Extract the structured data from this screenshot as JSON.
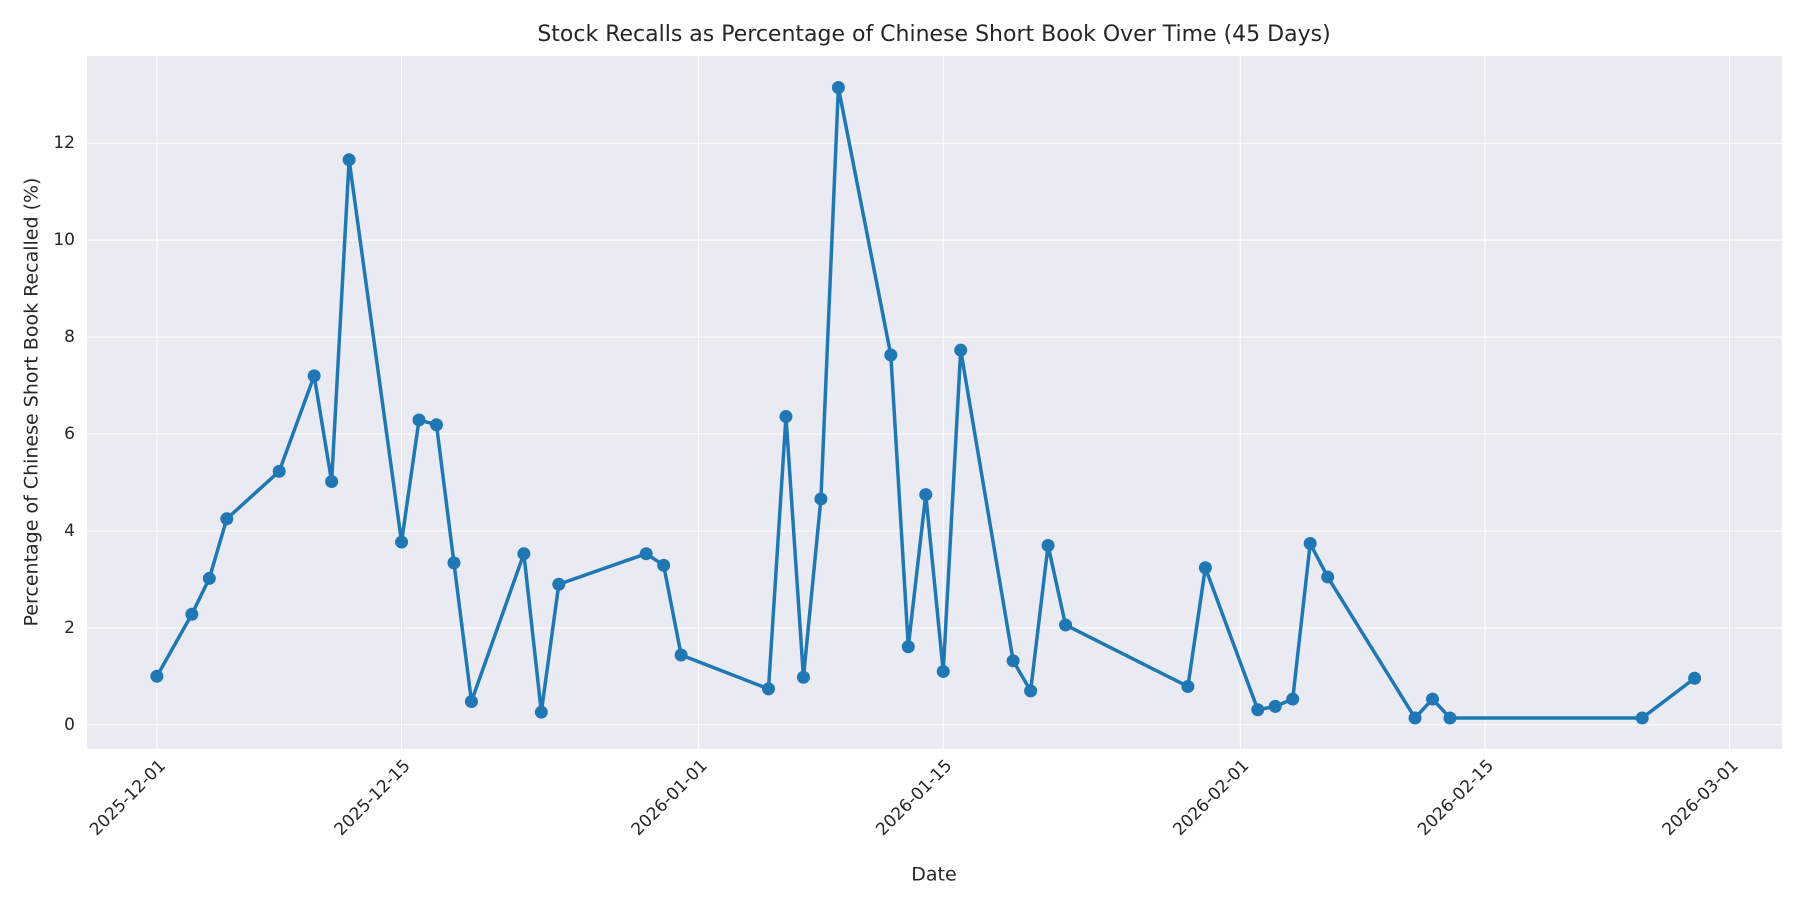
{
  "chart_data": {
    "type": "line",
    "title": "Stock Recalls as Percentage of Chinese Short Book Over Time (45 Days)",
    "xlabel": "Date",
    "ylabel": "Percentage of Chinese Short Book Recalled (%)",
    "x": [
      "2025-12-01",
      "2025-12-03",
      "2025-12-04",
      "2025-12-05",
      "2025-12-08",
      "2025-12-10",
      "2025-12-11",
      "2025-12-12",
      "2025-12-15",
      "2025-12-16",
      "2025-12-17",
      "2025-12-18",
      "2025-12-19",
      "2025-12-22",
      "2025-12-23",
      "2025-12-24",
      "2025-12-29",
      "2025-12-30",
      "2025-12-31",
      "2026-01-05",
      "2026-01-06",
      "2026-01-07",
      "2026-01-08",
      "2026-01-09",
      "2026-01-12",
      "2026-01-13",
      "2026-01-14",
      "2026-01-15",
      "2026-01-16",
      "2026-01-19",
      "2026-01-20",
      "2026-01-21",
      "2026-01-22",
      "2026-01-29",
      "2026-01-30",
      "2026-02-02",
      "2026-02-03",
      "2026-02-04",
      "2026-02-05",
      "2026-02-06",
      "2026-02-11",
      "2026-02-12",
      "2026-02-13",
      "2026-02-24",
      "2026-02-27"
    ],
    "series": [
      {
        "name": "Recalled (%)",
        "color": "#1f77b4",
        "values": [
          1.0,
          2.28,
          3.02,
          4.25,
          5.23,
          7.2,
          5.02,
          11.66,
          3.77,
          6.29,
          6.19,
          3.34,
          0.48,
          3.53,
          0.26,
          2.9,
          3.53,
          3.29,
          1.44,
          0.74,
          6.36,
          0.98,
          4.66,
          13.15,
          7.63,
          1.61,
          4.75,
          1.1,
          7.73,
          1.32,
          0.7,
          3.7,
          2.06,
          0.79,
          3.24,
          0.31,
          0.38,
          0.53,
          3.74,
          3.05,
          0.14,
          0.53,
          0.14,
          0.14,
          0.96
        ]
      }
    ],
    "xlim": [
      "2025-11-27",
      "2026-03-04"
    ],
    "xticks": [
      "2025-12-01",
      "2025-12-15",
      "2026-01-01",
      "2026-01-15",
      "2026-02-01",
      "2026-02-15",
      "2026-03-01"
    ],
    "ylim": [
      -0.5,
      13.8
    ],
    "yticks": [
      0,
      2,
      4,
      6,
      8,
      10,
      12
    ],
    "grid": true
  }
}
